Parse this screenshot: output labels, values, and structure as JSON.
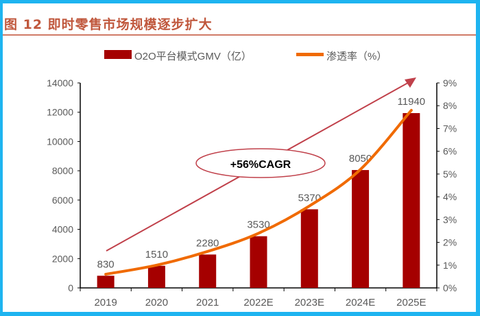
{
  "figure_title": "图 12  即时零售市场规模逐步扩大",
  "chart_data": {
    "type": "bar+line",
    "categories": [
      "2019",
      "2020",
      "2021",
      "2022E",
      "2023E",
      "2024E",
      "2025E"
    ],
    "series": [
      {
        "name": "O2O平台模式GMV（亿）",
        "type": "bar",
        "axis": "left",
        "values": [
          830,
          1510,
          2280,
          3530,
          5370,
          8050,
          11940
        ],
        "color": "#a50000"
      },
      {
        "name": "渗透率（%）",
        "type": "line",
        "axis": "right",
        "values": [
          0.6,
          1.0,
          1.6,
          2.4,
          3.6,
          5.2,
          7.8
        ],
        "color": "#f06a00"
      }
    ],
    "left_axis": {
      "ylim": [
        0,
        14000
      ],
      "ticks": [
        "0",
        "2000",
        "4000",
        "6000",
        "8000",
        "10000",
        "12000",
        "14000"
      ]
    },
    "right_axis": {
      "ylim": [
        0,
        9
      ],
      "ticks": [
        "0%",
        "1%",
        "2%",
        "3%",
        "4%",
        "5%",
        "6%",
        "7%",
        "8%",
        "9%"
      ]
    },
    "annotation": "+56%CAGR",
    "legend_placement": "top",
    "grid": false
  }
}
